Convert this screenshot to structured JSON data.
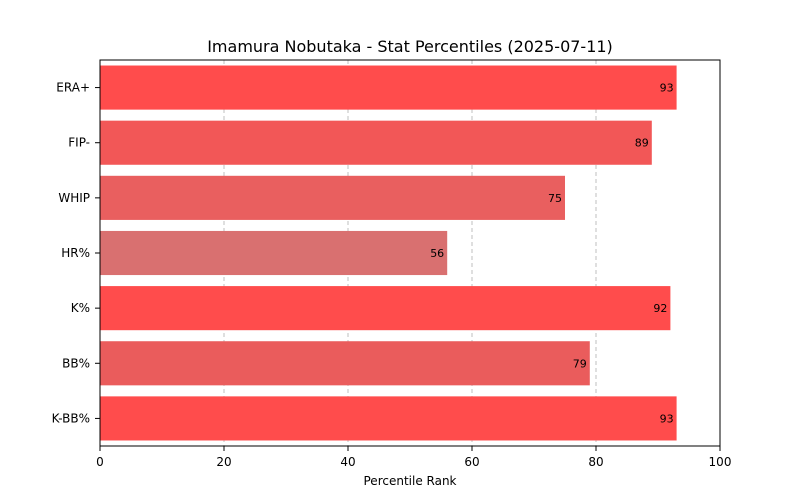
{
  "chart_data": {
    "type": "bar",
    "orientation": "horizontal",
    "title": "Imamura Nobutaka - Stat Percentiles (2025-07-11)",
    "xlabel": "Percentile Rank",
    "ylabel": "",
    "xlim": [
      0,
      100
    ],
    "xticks": [
      0,
      20,
      40,
      60,
      80,
      100
    ],
    "grid": "vertical dashed",
    "categories": [
      "ERA+",
      "FIP-",
      "WHIP",
      "HR%",
      "K%",
      "BB%",
      "K-BB%"
    ],
    "values": [
      93,
      89,
      75,
      56,
      92,
      79,
      93
    ],
    "colors": [
      "#ff4c4c",
      "#f25757",
      "#e95f5f",
      "#d97070",
      "#ff4c4c",
      "#ea5c5c",
      "#ff4c4c"
    ]
  }
}
